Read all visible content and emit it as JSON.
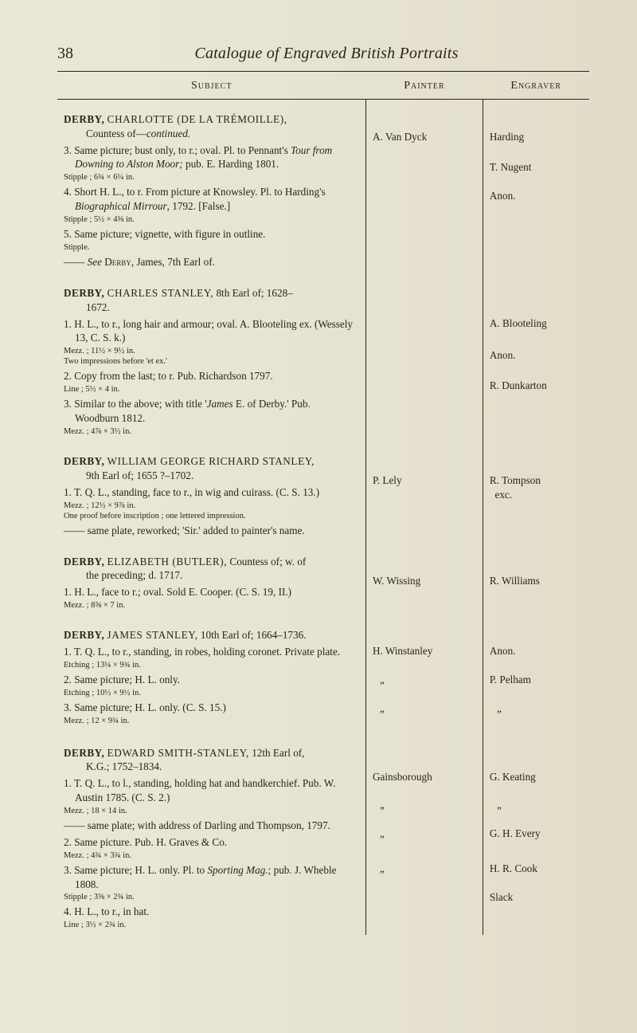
{
  "page_number": "38",
  "running_title": "Catalogue of Engraved British Portraits",
  "columns": {
    "subject": "Subject",
    "painter": "Painter",
    "engraver": "Engraver"
  },
  "rows": [
    {
      "subject_html": "<div class='head-entry'><b>DERBY,</b> <span class='sc'>CHARLOTTE (DE LA TRÉMOILLE),</span><span class='indent-cont'>Countess of—<i>continued.</i></span></div><div class='sub'>3. Same picture; bust only, to r.; oval. Pl. to Pennant's <span class='it'>Tour from Downing to Alston Moor;</span> pub. E. Harding 1801.</div><div class='small'>Stipple ; 6¾ × 6¼ in.</div><div class='sub'>4. Short H. L., to r. From picture at Knowsley. Pl. to Harding's <span class='it'>Biographical Mirrour</span>, 1792. [False.]</div><div class='small'>Stipple ; 5½ × 4⅜ in.</div><div class='sub'>5. Same picture; vignette, with figure in outline.</div><div class='small'>Stipple.</div><div class='sub'>—— <span class='it'>See</span> <span class='smallsc'>Derby</span>, James, 7th Earl of.</div>",
      "painter_lines": [
        "A. Van Dyck",
        "",
        ""
      ],
      "engraver_lines": [
        "Harding",
        "T. Nugent",
        "Anon."
      ],
      "painter_gaps": [
        28,
        56,
        38
      ],
      "engraver_gaps": [
        28,
        20,
        8
      ]
    },
    {
      "subject_html": "<div class='head-entry'><b>DERBY,</b> <span class='sc'>CHARLES STANLEY,</span> 8th Earl of; 1628–<span class='indent-cont'>1672.</span></div><div class='sub'>1. H. L., to r., long hair and armour; oval. A. Blooteling ex. (Wessely 13, C. S. k.)</div><div class='small'>Mezz. ; 11½ × 9½ in.<br>Two impressions before 'et ex.'</div><div class='sub'>2. Copy from the last; to r. Pub. Richardson 1797.</div><div class='small'>Line ; 5½ × 4 in.</div><div class='sub'>3. Similar to the above; with title '<span class='it'>James</span> E. of Derby.' Pub. Woodburn 1812.</div><div class='small'>Mezz. ; 4⅞ × 3½ in.</div>",
      "painter_lines": [
        "",
        "",
        ""
      ],
      "engraver_lines": [
        "A. Blooteling",
        "Anon.",
        "R. Dunkarton"
      ],
      "painter_gaps": [
        0,
        0,
        0
      ],
      "engraver_gaps": [
        44,
        22,
        20
      ]
    },
    {
      "subject_html": "<div class='head-entry'><b>DERBY,</b> <span class='sc'>WILLIAM GEORGE RICHARD STANLEY,</span><span class='indent-cont'>9th Earl of; 1655 ?–1702.</span></div><div class='sub'>1. T. Q. L., standing, face to r., in wig and cuirass. (C. S. 13.)</div><div class='small'>Mezz. ; 12½ × 9⅞ in.<br>One proof before inscription ; one lettered impression.</div><div class='sub'>—— same plate, reworked; 'Sir.' added to painter's name.</div>",
      "painter_lines": [
        "P. Lely"
      ],
      "engraver_lines": [
        "R. Tompson<br>&nbsp;&nbsp;exc."
      ],
      "painter_gaps": [
        30
      ],
      "engraver_gaps": [
        30
      ]
    },
    {
      "subject_html": "<div class='head-entry'><b>DERBY,</b> <span class='sc'>ELIZABETH (BUTLER),</span> Countess of; w. of<span class='indent-cont'>the preceding; d. 1717.</span></div><div class='sub'>1. H. L., face to r.; oval. Sold E. Cooper. (C. S. 19, II.)</div><div class='small'>Mezz. ; 8⅝ × 7 in.</div>",
      "painter_lines": [
        "W. Wissing"
      ],
      "engraver_lines": [
        "R. Williams"
      ],
      "painter_gaps": [
        30
      ],
      "engraver_gaps": [
        30
      ]
    },
    {
      "subject_html": "<div class='head-entry'><b>DERBY,</b> <span class='sc'>JAMES STANLEY,</span> 10th Earl of; 1664–1736.</div><div class='sub'>1. T. Q. L., to r., standing, in robes, holding coronet. Private plate.</div><div class='small'>Etching ; 13¼ × 9¾ in.</div><div class='sub'>2. Same picture; H. L. only.</div><div class='small'>Etching ; 10½ × 9½ in.</div><div class='sub'>3. Same picture; H. L. only. (C. S. 15.)</div><div class='small'>Mezz. ; 12 × 9¾ in.</div>",
      "painter_lines": [
        "H. Winstanley",
        "<span class='quote-mark'>„</span>",
        "<span class='quote-mark'>„</span>"
      ],
      "engraver_lines": [
        "Anon.",
        "P. Pelham",
        "<span class='quote-mark'>„</span>"
      ],
      "painter_gaps": [
        26,
        10,
        10
      ],
      "engraver_gaps": [
        26,
        10,
        10
      ]
    },
    {
      "subject_html": "<div class='head-entry'><b>DERBY,</b> <span class='sc'>EDWARD SMITH-STANLEY,</span> 12th Earl of,<span class='indent-cont'>K.G.; 1752–1834.</span></div><div class='sub'>1. T. Q. L., to l., standing, holding hat and handkerchief. Pub. W. Austin 1785. (C. S. 2.)</div><div class='small'>Mezz. ; 18 × 14 in.</div><div class='sub'>—— same plate; with address of Darling and Thompson, 1797.</div><div class='sub'>2. Same picture. Pub. H. Graves &amp; Co.</div><div class='small'>Mezz. ; 4¾ × 3¾ in.</div><div class='sub'>3. Same picture; H. L. only. Pl. to <span class='it'>Sporting Mag.</span>; pub. J. Wheble 1808.</div><div class='small'>Stipple ; 3⅝ × 2¾ in.</div><div class='sub'>4. H. L., to r., in hat.</div><div class='small'>Line ; 3½ × 2¾ in.</div>",
      "painter_lines": [
        "Gainsborough",
        "<span class='quote-mark'>„</span>",
        "<span class='quote-mark'>„</span>",
        "<span class='quote-mark'>„</span>",
        ""
      ],
      "engraver_lines": [
        "G. Keating",
        "<span class='quote-mark'>„</span>",
        "G. H. Every",
        "H. R. Cook",
        "Slack"
      ],
      "painter_gaps": [
        36,
        16,
        4,
        26,
        6
      ],
      "engraver_gaps": [
        36,
        16,
        4,
        26,
        6
      ]
    }
  ]
}
